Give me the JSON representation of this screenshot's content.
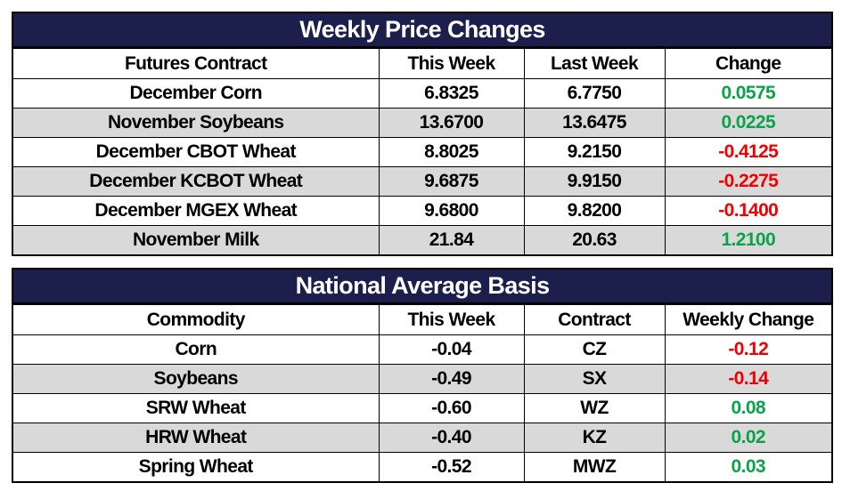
{
  "weekly_price_changes": {
    "title": "Weekly Price Changes",
    "headers": [
      "Futures Contract",
      "This Week",
      "Last Week",
      "Change"
    ],
    "rows": [
      {
        "contract": "December Corn",
        "this_week": "6.8325",
        "last_week": "6.7750",
        "change": "0.0575",
        "direction": "up"
      },
      {
        "contract": "November Soybeans",
        "this_week": "13.6700",
        "last_week": "13.6475",
        "change": "0.0225",
        "direction": "up"
      },
      {
        "contract": "December CBOT Wheat",
        "this_week": "8.8025",
        "last_week": "9.2150",
        "change": "-0.4125",
        "direction": "down"
      },
      {
        "contract": "December KCBOT Wheat",
        "this_week": "9.6875",
        "last_week": "9.9150",
        "change": "-0.2275",
        "direction": "down"
      },
      {
        "contract": "December MGEX Wheat",
        "this_week": "9.6800",
        "last_week": "9.8200",
        "change": "-0.1400",
        "direction": "down"
      },
      {
        "contract": "November Milk",
        "this_week": "21.84",
        "last_week": "20.63",
        "change": "1.2100",
        "direction": "up"
      }
    ]
  },
  "national_average_basis": {
    "title": "National Average Basis",
    "headers": [
      "Commodity",
      "This Week",
      "Contract",
      "Weekly Change"
    ],
    "rows": [
      {
        "commodity": "Corn",
        "this_week": "-0.04",
        "contract": "CZ",
        "change": "-0.12",
        "direction": "down"
      },
      {
        "commodity": "Soybeans",
        "this_week": "-0.49",
        "contract": "SX",
        "change": "-0.14",
        "direction": "down"
      },
      {
        "commodity": "SRW Wheat",
        "this_week": "-0.60",
        "contract": "WZ",
        "change": "0.08",
        "direction": "up"
      },
      {
        "commodity": "HRW Wheat",
        "this_week": "-0.40",
        "contract": "KZ",
        "change": "0.02",
        "direction": "up"
      },
      {
        "commodity": "Spring Wheat",
        "this_week": "-0.52",
        "contract": "MWZ",
        "change": "0.03",
        "direction": "up"
      }
    ]
  },
  "colors": {
    "header_bg": "#1c1e4c",
    "positive": "#0aa34a",
    "negative": "#f00000",
    "alt_row": "#d9d9d9"
  }
}
